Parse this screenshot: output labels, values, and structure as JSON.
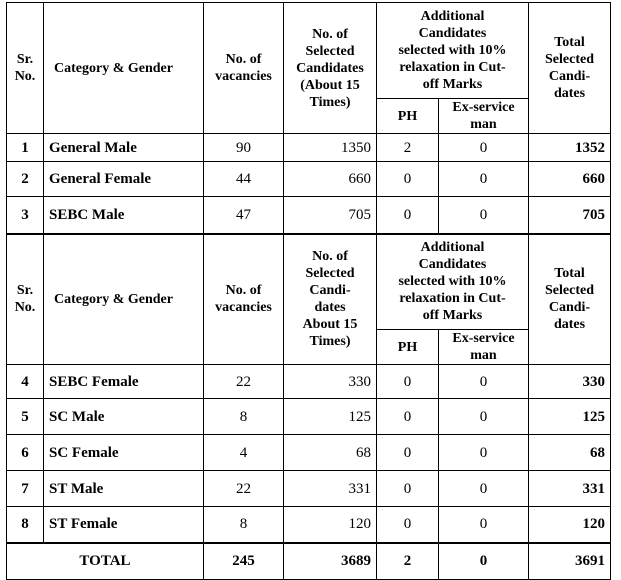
{
  "sections": [
    {
      "header": {
        "sr": "Sr.\nNo.",
        "category": "Category & Gender",
        "vacancies": "No. of\nvacancies",
        "selected": "No. of\nSelected\nCandidates\n(About 15\nTimes)",
        "additional": "Additional\nCandidates\nselected with 10%\nrelaxation in Cut-\noff Marks",
        "ph": "PH",
        "ex_service": "Ex-service\nman",
        "total": "Total\nSelected\nCandi-\ndates"
      },
      "rows": [
        [
          1,
          "General Male",
          90,
          1350,
          2,
          0,
          1352
        ],
        [
          2,
          "General Female",
          44,
          660,
          0,
          0,
          660
        ],
        [
          3,
          "SEBC Male",
          47,
          705,
          0,
          0,
          705
        ]
      ]
    },
    {
      "header": {
        "sr": "Sr.\nNo.",
        "category": "Category & Gender",
        "vacancies": "No. of\nvacancies",
        "selected": "No. of\nSelected\nCandi-\ndates\nAbout 15\nTimes)",
        "additional": "Additional\nCandidates\nselected with 10%\nrelaxation in Cut-\noff Marks",
        "ph": "PH",
        "ex_service": "Ex-service\nman",
        "total": "Total\nSelected\nCandi-\ndates"
      },
      "rows": [
        [
          4,
          "SEBC Female",
          22,
          330,
          0,
          0,
          330
        ],
        [
          5,
          "SC Male",
          8,
          125,
          0,
          0,
          125
        ],
        [
          6,
          "SC Female",
          4,
          68,
          0,
          0,
          68
        ],
        [
          7,
          "ST Male",
          22,
          331,
          0,
          0,
          331
        ],
        [
          8,
          "ST Female",
          8,
          120,
          0,
          0,
          120
        ]
      ]
    }
  ],
  "total": {
    "label": "TOTAL",
    "values": [
      245,
      3689,
      2,
      0,
      3691
    ]
  }
}
